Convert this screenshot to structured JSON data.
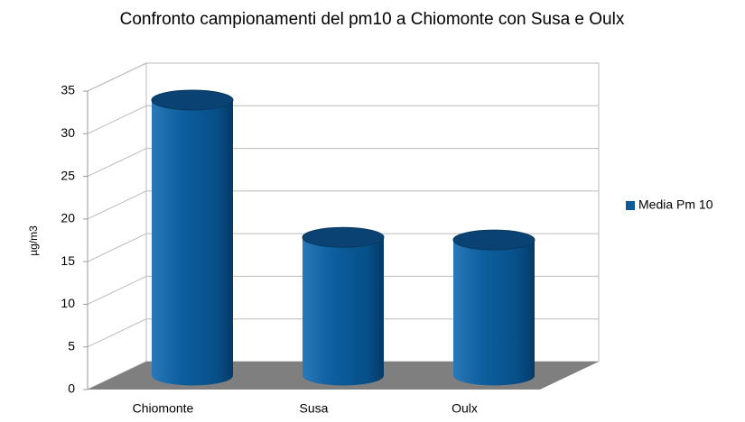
{
  "chart_data": {
    "type": "bar3d",
    "title": "Confronto campionamenti del pm10 a Chiomonte con Susa e Oulx",
    "y_label": "µg/m3",
    "categories": [
      "Chiomonte",
      "Susa",
      "Oulx"
    ],
    "series": [
      {
        "name": "Media Pm 10",
        "color": "#0b5b9b",
        "values": [
          32.3,
          16.2,
          15.9
        ]
      }
    ],
    "ylim": [
      0,
      35
    ],
    "yticks": [
      0,
      5,
      10,
      15,
      20,
      25,
      30,
      35
    ],
    "grid": true,
    "legend": "right"
  }
}
